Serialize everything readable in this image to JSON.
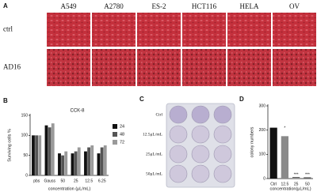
{
  "panel_a": {
    "label": "A",
    "columns": [
      "A549",
      "A2780",
      "ES-2",
      "HCT116",
      "HELA",
      "OV"
    ],
    "rows": [
      "ctrl",
      "AD16"
    ]
  },
  "panel_c": {
    "label": "C",
    "rows": [
      "Ctrl",
      "12.5μL/mL",
      "25μL/mL",
      "50μL/mL"
    ]
  },
  "chart_data": [
    {
      "type": "bar",
      "label": "B",
      "title": "CCK-8",
      "y_label": "Surviving cells %",
      "x_label": "concentration (μL/mL)",
      "categories": [
        "pbs",
        "Gauss",
        "50",
        "25",
        "12.5",
        "6.25"
      ],
      "series": [
        {
          "name": "24",
          "color": "#111111",
          "values": [
            100,
            125,
            55,
            55,
            60,
            55
          ]
        },
        {
          "name": "48",
          "color": "#555555",
          "values": [
            100,
            120,
            50,
            60,
            70,
            70
          ]
        },
        {
          "name": "72",
          "color": "#9a9a9a",
          "values": [
            100,
            130,
            60,
            70,
            75,
            75
          ]
        }
      ],
      "ylim": [
        0,
        150
      ],
      "yticks": [
        0,
        50,
        100,
        150
      ]
    },
    {
      "type": "bar",
      "label": "D",
      "y_label": "colony numbers",
      "x_label": "concentration(μL/mL)",
      "categories": [
        "Ctrl",
        "12.5",
        "25",
        "50"
      ],
      "values": [
        210,
        175,
        3,
        2
      ],
      "colors": [
        "#111111",
        "#8a8a8a",
        "#555555",
        "#555555"
      ],
      "significance": [
        "*",
        "***",
        "***"
      ],
      "ylim": [
        0,
        300
      ],
      "yticks": [
        0,
        100,
        200,
        300
      ]
    }
  ]
}
